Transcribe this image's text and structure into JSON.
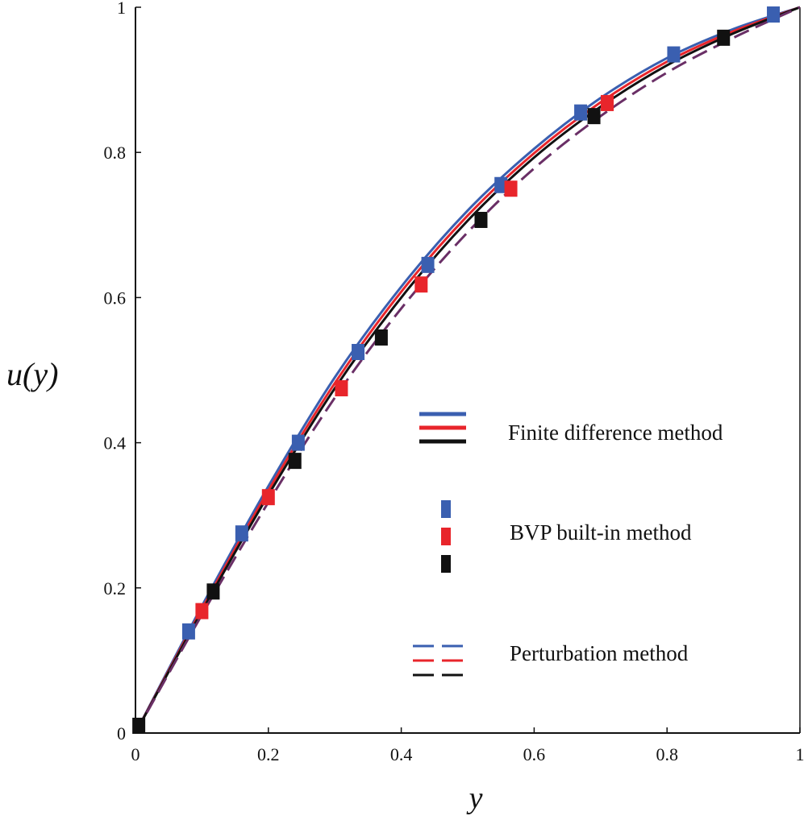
{
  "chart_data": {
    "type": "line",
    "title": "",
    "xlabel": "y",
    "ylabel": "u(y)",
    "xlim": [
      0,
      1
    ],
    "ylim": [
      0,
      1
    ],
    "xticks": [
      "0",
      "0.2",
      "0.4",
      "0.6",
      "0.8",
      "1"
    ],
    "yticks": [
      "0",
      "0.2",
      "0.4",
      "0.6",
      "0.8",
      "1"
    ],
    "grid": false,
    "legend_position": "center-right",
    "colors": {
      "blue": "#3a5fb0",
      "red": "#e8252b",
      "black": "#111111",
      "purple": "#6a2f66"
    },
    "series": [
      {
        "name": "Finite difference method (blue)",
        "style": "solid",
        "color": "blue",
        "x": [
          0,
          0.1,
          0.2,
          0.3,
          0.4,
          0.5,
          0.6,
          0.7,
          0.8,
          0.9,
          1
        ],
        "y": [
          0,
          0.175,
          0.34,
          0.49,
          0.615,
          0.72,
          0.805,
          0.875,
          0.93,
          0.97,
          1
        ]
      },
      {
        "name": "Finite difference method (red)",
        "style": "solid",
        "color": "red",
        "x": [
          0,
          0.1,
          0.2,
          0.3,
          0.4,
          0.5,
          0.6,
          0.7,
          0.8,
          0.9,
          1
        ],
        "y": [
          0,
          0.171,
          0.334,
          0.482,
          0.608,
          0.713,
          0.799,
          0.869,
          0.925,
          0.967,
          1
        ]
      },
      {
        "name": "Finite difference method (black)",
        "style": "solid",
        "color": "black",
        "x": [
          0,
          0.1,
          0.2,
          0.3,
          0.4,
          0.5,
          0.6,
          0.7,
          0.8,
          0.9,
          1
        ],
        "y": [
          0,
          0.168,
          0.328,
          0.475,
          0.6,
          0.706,
          0.793,
          0.863,
          0.92,
          0.964,
          1
        ]
      },
      {
        "name": "Perturbation method",
        "style": "dashed",
        "color": "purple",
        "x": [
          0,
          0.1,
          0.2,
          0.3,
          0.4,
          0.5,
          0.6,
          0.7,
          0.8,
          0.9,
          1
        ],
        "y": [
          0,
          0.163,
          0.318,
          0.462,
          0.585,
          0.69,
          0.778,
          0.85,
          0.91,
          0.958,
          1
        ]
      },
      {
        "name": "BVP built-in method (blue)",
        "style": "markers",
        "color": "blue",
        "x": [
          0.08,
          0.16,
          0.245,
          0.335,
          0.44,
          0.55,
          0.67,
          0.81,
          0.96
        ],
        "y": [
          0.14,
          0.275,
          0.4,
          0.525,
          0.645,
          0.755,
          0.855,
          0.935,
          0.99
        ]
      },
      {
        "name": "BVP built-in method (red)",
        "style": "markers",
        "color": "red",
        "x": [
          0.1,
          0.2,
          0.31,
          0.43,
          0.565,
          0.71
        ],
        "y": [
          0.168,
          0.325,
          0.475,
          0.618,
          0.75,
          0.868
        ]
      },
      {
        "name": "BVP built-in method (black)",
        "style": "markers",
        "color": "black",
        "x": [
          0.005,
          0.117,
          0.24,
          0.37,
          0.52,
          0.69,
          0.885
        ],
        "y": [
          0.01,
          0.195,
          0.375,
          0.545,
          0.707,
          0.85,
          0.958
        ]
      }
    ],
    "legend": [
      {
        "label": "Finite difference method",
        "style": "solid"
      },
      {
        "label": "BVP built-in method",
        "style": "markers"
      },
      {
        "label": "Perturbation method",
        "style": "dashed"
      }
    ]
  }
}
